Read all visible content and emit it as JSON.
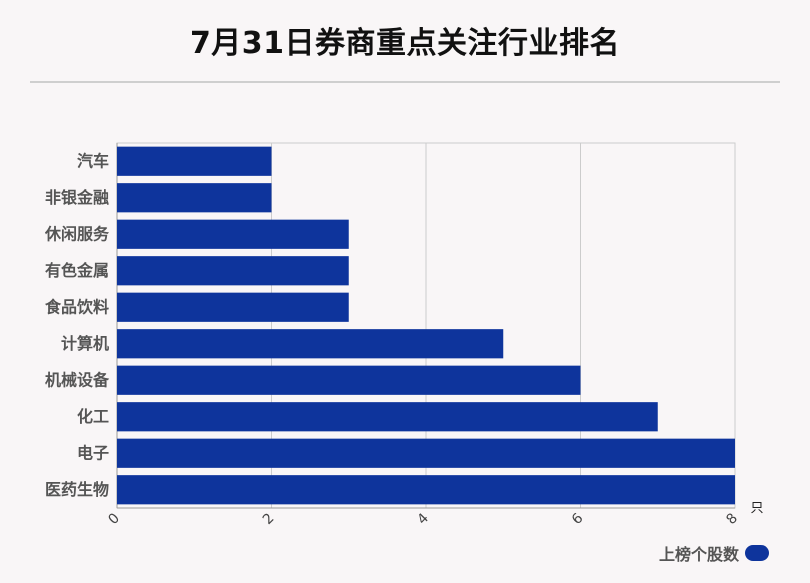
{
  "title": "7月31日券商重点关注行业排名",
  "colors": {
    "bar": "#0e349c",
    "grid": "#cccccc",
    "axis": "#999999"
  },
  "chart_data": {
    "type": "bar",
    "orientation": "horizontal",
    "title": "7月31日券商重点关注行业排名",
    "categories": [
      "汽车",
      "非银金融",
      "休闲服务",
      "有色金属",
      "食品饮料",
      "计算机",
      "机械设备",
      "化工",
      "电子",
      "医药生物"
    ],
    "series": [
      {
        "name": "上榜个股数",
        "values": [
          2,
          2,
          3,
          3,
          3,
          5,
          6,
          7,
          8,
          8
        ]
      }
    ],
    "xlim": [
      0,
      8
    ],
    "xticks": [
      "0",
      "2",
      "4",
      "6",
      "8"
    ],
    "xunit": "只",
    "grid": true,
    "legend": "bottom-right"
  }
}
